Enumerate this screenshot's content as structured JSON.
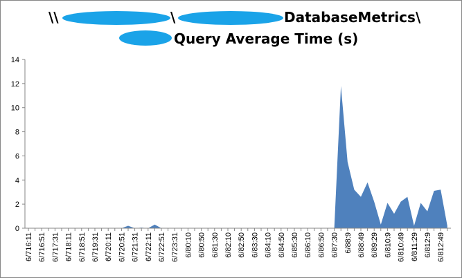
{
  "chart_data": {
    "type": "area",
    "title": {
      "line1": [
        "\\\\",
        "\\",
        "DatabaseMetrics\\"
      ],
      "line2": "Query Average Time (s)"
    },
    "categories": [
      "6/716:11",
      null,
      "6/716:51",
      null,
      "6/717:31",
      null,
      "6/718:11",
      null,
      "6/718:51",
      null,
      "6/719:31",
      null,
      "6/720:11",
      null,
      "6/720:51",
      null,
      "6/721:31",
      null,
      "6/722:11",
      null,
      "6/722:51",
      null,
      "6/723:31",
      null,
      "6/80:10",
      null,
      "6/80:50",
      null,
      "6/81:30",
      null,
      "6/82:10",
      null,
      "6/82:50",
      null,
      "6/83:30",
      null,
      "6/84:10",
      null,
      "6/84:50",
      null,
      "6/85:30",
      null,
      "6/86:10",
      null,
      "6/86:50",
      null,
      "6/87:30",
      null,
      "6/88:9",
      null,
      "6/88:49",
      null,
      "6/89:29",
      null,
      "6/810:9",
      null,
      "6/810:49",
      null,
      "6/811:29",
      null,
      "6/812:9",
      null,
      "6/812:49",
      null
    ],
    "values": [
      0,
      0,
      0,
      0,
      0,
      0,
      0,
      0,
      0,
      0,
      0,
      0,
      0,
      0,
      0,
      0.2,
      0,
      0.05,
      0,
      0.3,
      0,
      0,
      0,
      0,
      0,
      0,
      0,
      0,
      0,
      0,
      0,
      0,
      0,
      0,
      0,
      0,
      0,
      0,
      0,
      0,
      0,
      0,
      0,
      0,
      0,
      0,
      0,
      11.8,
      5.5,
      3.2,
      2.6,
      3.8,
      2.2,
      0.3,
      2.1,
      1.2,
      2.2,
      2.6,
      0.2,
      2.1,
      1.4,
      3.1,
      3.2,
      0.2
    ],
    "color": "#4f81bd",
    "ylim": [
      0,
      14
    ],
    "yticks": [
      0,
      2,
      4,
      6,
      8,
      10,
      12,
      14
    ]
  }
}
